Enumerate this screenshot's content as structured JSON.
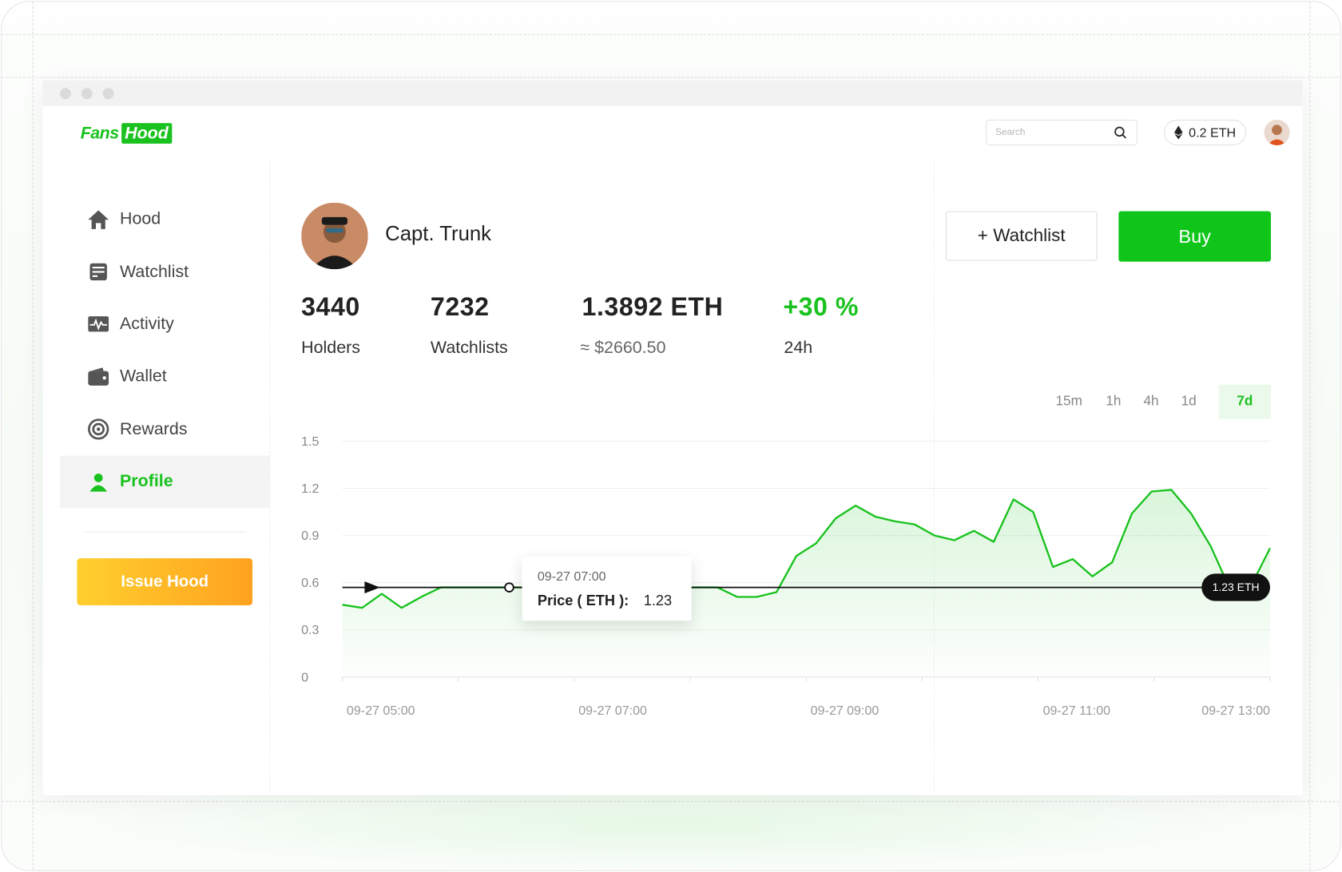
{
  "app": {
    "logo_fans": "Fans",
    "logo_hood": "Hood"
  },
  "header": {
    "search_placeholder": "Search",
    "balance": "0.2 ETH"
  },
  "sidebar": {
    "items": [
      {
        "label": "Hood",
        "icon": "home-icon"
      },
      {
        "label": "Watchlist",
        "icon": "watchlist-icon"
      },
      {
        "label": "Activity",
        "icon": "activity-icon"
      },
      {
        "label": "Wallet",
        "icon": "wallet-icon"
      },
      {
        "label": "Rewards",
        "icon": "rewards-icon"
      },
      {
        "label": "Profile",
        "icon": "user-icon",
        "active": true
      }
    ],
    "issue_button": "Issue Hood"
  },
  "profile": {
    "name": "Capt. Trunk",
    "watchlist_button": "+ Watchlist",
    "buy_button": "Buy"
  },
  "stats": {
    "holders_value": "3440",
    "holders_label": "Holders",
    "watchlists_value": "7232",
    "watchlists_label": "Watchlists",
    "price_value": "1.3892 ETH",
    "price_usd": "≈ $2660.50",
    "change_value": "+30 %",
    "change_label": "24h"
  },
  "timeframes": {
    "items": [
      "15m",
      "1h",
      "4h",
      "1d",
      "7d"
    ],
    "active": "7d"
  },
  "colors": {
    "accent": "#19c21e",
    "issue_gradient_start": "#ffcf2e",
    "issue_gradient_end": "#ffa21f",
    "badge": "#111111"
  },
  "tooltip": {
    "date": "09-27 07:00",
    "label": "Price ( ETH ):",
    "value": "1.23"
  },
  "price_badge": "1.23 ETH",
  "chart_data": {
    "type": "area",
    "x_labels": [
      "09-27 05:00",
      "09-27 07:00",
      "09-27 09:00",
      "09-27 11:00",
      "09-27 13:00"
    ],
    "y_ticks": [
      "0",
      "0.3",
      "0.6",
      "0.9",
      "1.2",
      "1.5"
    ],
    "ylim": [
      0,
      1.5
    ],
    "reference_line": 0.57,
    "grid": true,
    "series": [
      {
        "values": [
          0.46,
          0.44,
          0.53,
          0.44,
          0.51,
          0.57,
          0.57,
          0.57,
          0.57,
          0.57,
          0.57,
          0.57,
          0.57,
          0.57,
          0.57,
          0.57,
          0.57,
          0.57,
          0.57,
          0.57,
          0.51,
          0.51,
          0.54,
          0.77,
          0.85,
          1.01,
          1.09,
          1.02,
          0.99,
          0.97,
          0.9,
          0.87,
          0.93,
          0.86,
          1.13,
          1.05,
          0.7,
          0.75,
          0.64,
          0.73,
          1.04,
          1.18,
          1.19,
          1.04,
          0.83,
          0.55,
          0.57,
          0.82
        ]
      }
    ],
    "segments": [
      {
        "x": [
          0,
          0.18
        ],
        "note": "left"
      }
    ]
  }
}
